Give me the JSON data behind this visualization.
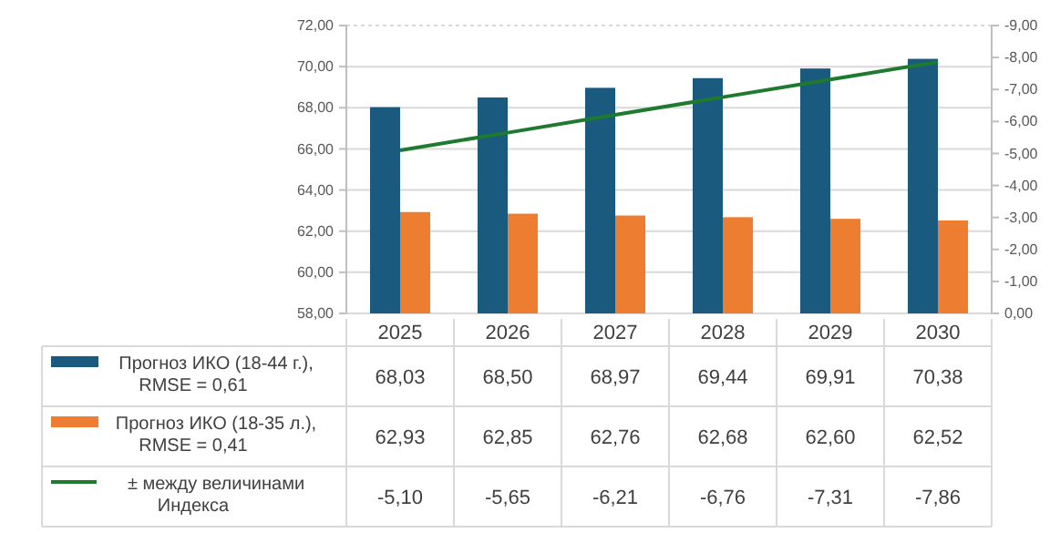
{
  "chart_data": {
    "type": "bar",
    "categories": [
      "2025",
      "2026",
      "2027",
      "2028",
      "2029",
      "2030"
    ],
    "series": [
      {
        "name": "Прогноз ИКО (18-44 г.), RMSE = 0,61",
        "color": "#1a5a7e",
        "values": [
          68.03,
          68.5,
          68.97,
          69.44,
          69.91,
          70.38
        ],
        "value_labels": [
          "68,03",
          "68,50",
          "68,97",
          "69,44",
          "69,91",
          "70,38"
        ]
      },
      {
        "name": "Прогноз ИКО (18-35 л.), RMSE = 0,41",
        "color": "#ed7d31",
        "values": [
          62.93,
          62.85,
          62.76,
          62.68,
          62.6,
          62.52
        ],
        "value_labels": [
          "62,93",
          "62,85",
          "62,76",
          "62,68",
          "62,60",
          "62,52"
        ]
      },
      {
        "name": "± между величинами Индекса",
        "type": "line",
        "axis": "y2",
        "color": "#1e7a2e",
        "values": [
          -5.1,
          -5.65,
          -6.21,
          -6.76,
          -7.31,
          -7.86
        ],
        "value_labels": [
          "-5,10",
          "-5,65",
          "-6,21",
          "-6,76",
          "-7,31",
          "-7,86"
        ]
      }
    ],
    "ylim": [
      58,
      72
    ],
    "yticks": [
      {
        "value": 58,
        "label": "58,00"
      },
      {
        "value": 60,
        "label": "60,00"
      },
      {
        "value": 62,
        "label": "62,00"
      },
      {
        "value": 64,
        "label": "64,00"
      },
      {
        "value": 66,
        "label": "66,00"
      },
      {
        "value": 68,
        "label": "68,00"
      },
      {
        "value": 70,
        "label": "70,00"
      },
      {
        "value": 72,
        "label": "72,00"
      }
    ],
    "y2lim": [
      0,
      -9
    ],
    "y2ticks": [
      {
        "value": 0,
        "label": "0,00"
      },
      {
        "value": -1,
        "label": "-1,00"
      },
      {
        "value": -2,
        "label": "-2,00"
      },
      {
        "value": -3,
        "label": "-3,00"
      },
      {
        "value": -4,
        "label": "-4,00"
      },
      {
        "value": -5,
        "label": "-5,00"
      },
      {
        "value": -6,
        "label": "-6,00"
      },
      {
        "value": -7,
        "label": "-7,00"
      },
      {
        "value": -8,
        "label": "-8,00"
      },
      {
        "value": -9,
        "label": "-9,00"
      }
    ],
    "grid": "y",
    "legend": "bottom",
    "marker": "none",
    "line_style": "solid"
  }
}
